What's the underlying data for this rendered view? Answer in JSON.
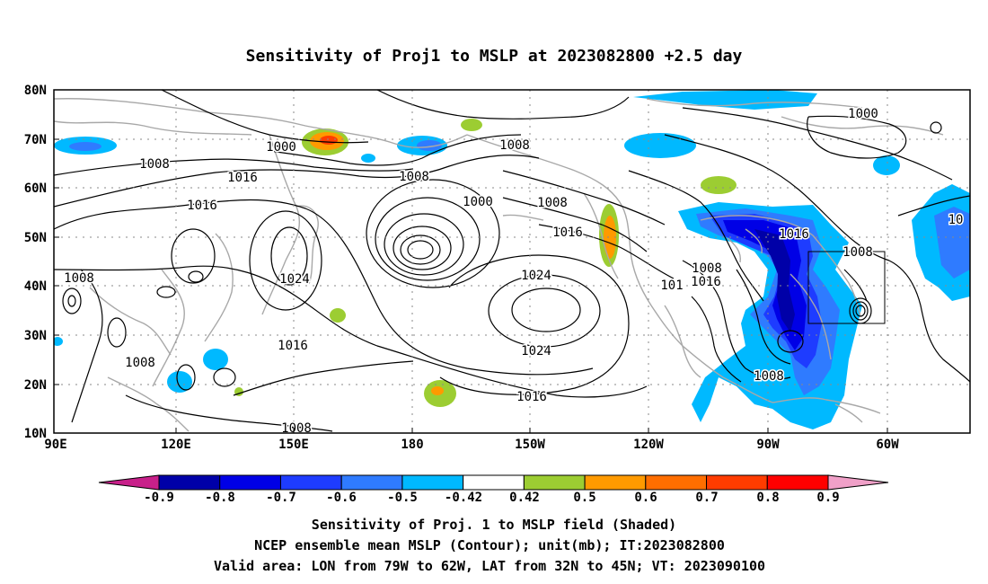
{
  "title": "Sensitivity of Proj1 to MSLP at 2023082800 +2.5 day",
  "lat_labels": [
    "80N",
    "70N",
    "60N",
    "50N",
    "40N",
    "30N",
    "20N",
    "10N"
  ],
  "lon_labels": [
    "90E",
    "120E",
    "150E",
    "180",
    "150W",
    "120W",
    "90W",
    "60W"
  ],
  "contour_labels": [
    "1000",
    "1000",
    "1000",
    "1008",
    "1008",
    "1008",
    "1008",
    "1008",
    "1008",
    "1008",
    "1008",
    "1008",
    "1008",
    "1016",
    "1016",
    "1016",
    "1016",
    "1016",
    "1016",
    "1016",
    "101",
    "1024",
    "1024",
    "1024",
    "10"
  ],
  "colorbar": {
    "labels": [
      "-0.9",
      "-0.8",
      "-0.7",
      "-0.6",
      "-0.5",
      "-0.42",
      "0.42",
      "0.5",
      "0.6",
      "0.7",
      "0.8",
      "0.9"
    ],
    "colors": [
      "#0000a8",
      "#0000e6",
      "#1e3cff",
      "#2f7bff",
      "#00b9ff",
      "#ffffff",
      "#9ccd32",
      "#ff9a00",
      "#ff6e00",
      "#ff3c00",
      "#ff0000"
    ],
    "low_end_color": "#c8208a",
    "high_end_color": "#f0a0c8"
  },
  "captions": [
    "Sensitivity of Proj. 1 to MSLP field (Shaded)",
    "NCEP ensemble mean MSLP (Contour); unit(mb); IT:2023082800",
    "Valid area: LON from 79W to 62W, LAT from 32N to 45N; VT: 2023090100"
  ]
}
